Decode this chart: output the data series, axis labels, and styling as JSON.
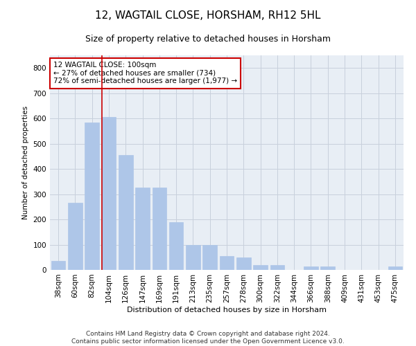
{
  "title": "12, WAGTAIL CLOSE, HORSHAM, RH12 5HL",
  "subtitle": "Size of property relative to detached houses in Horsham",
  "xlabel": "Distribution of detached houses by size in Horsham",
  "ylabel": "Number of detached properties",
  "categories": [
    "38sqm",
    "60sqm",
    "82sqm",
    "104sqm",
    "126sqm",
    "147sqm",
    "169sqm",
    "191sqm",
    "213sqm",
    "235sqm",
    "257sqm",
    "278sqm",
    "300sqm",
    "322sqm",
    "344sqm",
    "366sqm",
    "388sqm",
    "409sqm",
    "431sqm",
    "453sqm",
    "475sqm"
  ],
  "values": [
    37,
    265,
    585,
    605,
    455,
    325,
    325,
    190,
    100,
    100,
    55,
    50,
    20,
    20,
    0,
    15,
    15,
    0,
    0,
    0,
    15
  ],
  "bar_color": "#aec6e8",
  "bar_edgecolor": "#aec6e8",
  "highlight_index": 3,
  "highlight_line_color": "#cc0000",
  "annotation_text": "12 WAGTAIL CLOSE: 100sqm\n← 27% of detached houses are smaller (734)\n72% of semi-detached houses are larger (1,977) →",
  "annotation_box_edgecolor": "#cc0000",
  "ylim": [
    0,
    850
  ],
  "yticks": [
    0,
    100,
    200,
    300,
    400,
    500,
    600,
    700,
    800
  ],
  "grid_color": "#c8d0dc",
  "bg_color": "#e8eef5",
  "footer": "Contains HM Land Registry data © Crown copyright and database right 2024.\nContains public sector information licensed under the Open Government Licence v3.0.",
  "title_fontsize": 11,
  "subtitle_fontsize": 9,
  "footer_fontsize": 6.5,
  "axis_fontsize": 7.5,
  "ylabel_fontsize": 7.5,
  "xlabel_fontsize": 8,
  "annotation_fontsize": 7.5
}
